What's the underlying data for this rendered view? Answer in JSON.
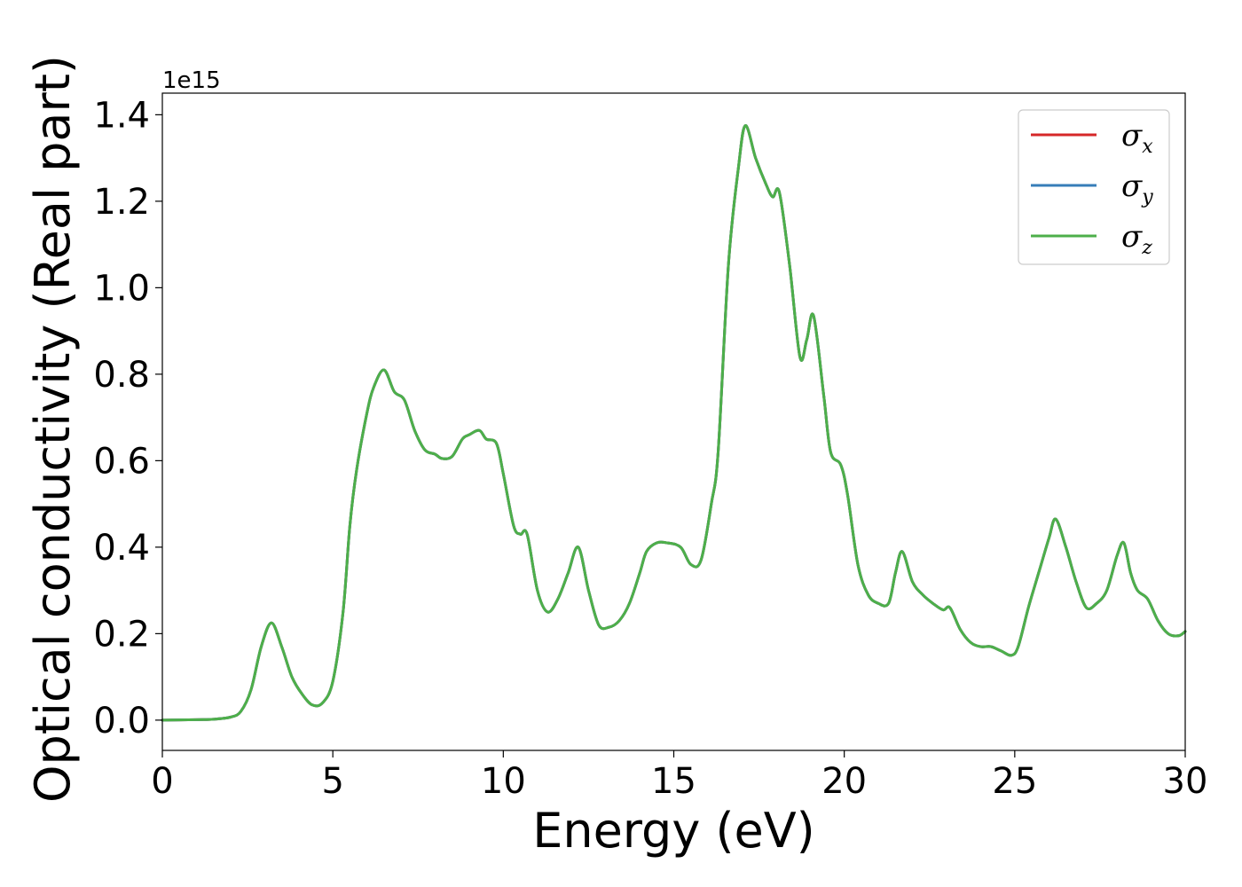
{
  "chart_data": {
    "type": "line",
    "title": "",
    "xlabel": "Energy (eV)",
    "ylabel": "Optical conductivity (Real part)",
    "y_offset_label": "1e15",
    "xlim": [
      0,
      30
    ],
    "ylim": [
      -0.07,
      1.45
    ],
    "x_ticks": [
      0,
      5,
      10,
      15,
      20,
      25,
      30
    ],
    "x_tick_labels": [
      "0",
      "5",
      "10",
      "15",
      "20",
      "25",
      "30"
    ],
    "y_ticks": [
      0.0,
      0.2,
      0.4,
      0.6,
      0.8,
      1.0,
      1.2,
      1.4
    ],
    "y_tick_labels": [
      "0.0",
      "0.2",
      "0.4",
      "0.6",
      "0.8",
      "1.0",
      "1.2",
      "1.4"
    ],
    "grid": false,
    "legend_position": "top-right",
    "x": [
      0,
      1,
      1.5,
      2,
      2.3,
      2.6,
      2.9,
      3.2,
      3.5,
      3.8,
      4.1,
      4.4,
      4.7,
      5.0,
      5.3,
      5.5,
      5.7,
      6.0,
      6.2,
      6.5,
      6.8,
      7.1,
      7.4,
      7.7,
      8.0,
      8.2,
      8.5,
      8.8,
      9.0,
      9.3,
      9.5,
      9.8,
      10.0,
      10.3,
      10.5,
      10.7,
      11.0,
      11.3,
      11.6,
      11.9,
      12.2,
      12.5,
      12.8,
      13.1,
      13.4,
      13.7,
      14.0,
      14.2,
      14.5,
      14.8,
      15.2,
      15.5,
      15.8,
      16.1,
      16.3,
      16.6,
      16.9,
      17.1,
      17.4,
      17.7,
      17.9,
      18.1,
      18.4,
      18.7,
      18.9,
      19.1,
      19.4,
      19.6,
      19.9,
      20.1,
      20.4,
      20.7,
      21.0,
      21.3,
      21.5,
      21.7,
      22.0,
      22.3,
      22.6,
      22.9,
      23.1,
      23.4,
      23.7,
      24.0,
      24.3,
      24.6,
      24.9,
      25.1,
      25.4,
      25.7,
      26.0,
      26.2,
      26.5,
      26.8,
      27.1,
      27.4,
      27.7,
      28.0,
      28.2,
      28.4,
      28.6,
      28.9,
      29.2,
      29.5,
      29.8,
      30.0
    ],
    "series": [
      {
        "name": "σx",
        "color": "#d62728",
        "y": [
          0,
          0.001,
          0.002,
          0.007,
          0.02,
          0.07,
          0.17,
          0.225,
          0.17,
          0.1,
          0.06,
          0.035,
          0.04,
          0.09,
          0.25,
          0.45,
          0.58,
          0.71,
          0.77,
          0.81,
          0.76,
          0.74,
          0.67,
          0.625,
          0.615,
          0.605,
          0.61,
          0.65,
          0.66,
          0.67,
          0.65,
          0.64,
          0.57,
          0.45,
          0.43,
          0.43,
          0.3,
          0.25,
          0.28,
          0.34,
          0.4,
          0.3,
          0.22,
          0.215,
          0.23,
          0.27,
          0.34,
          0.39,
          0.41,
          0.41,
          0.4,
          0.36,
          0.37,
          0.5,
          0.62,
          1.05,
          1.28,
          1.375,
          1.3,
          1.24,
          1.21,
          1.22,
          1.05,
          0.84,
          0.88,
          0.935,
          0.75,
          0.62,
          0.59,
          0.52,
          0.36,
          0.29,
          0.27,
          0.27,
          0.34,
          0.39,
          0.32,
          0.29,
          0.27,
          0.255,
          0.26,
          0.21,
          0.18,
          0.17,
          0.17,
          0.16,
          0.15,
          0.17,
          0.26,
          0.34,
          0.42,
          0.465,
          0.4,
          0.32,
          0.26,
          0.27,
          0.3,
          0.38,
          0.41,
          0.34,
          0.3,
          0.28,
          0.23,
          0.2,
          0.195,
          0.205
        ]
      },
      {
        "name": "σy",
        "color": "#377eb8",
        "y": [
          0,
          0.001,
          0.002,
          0.007,
          0.02,
          0.07,
          0.17,
          0.225,
          0.17,
          0.1,
          0.06,
          0.035,
          0.04,
          0.09,
          0.25,
          0.45,
          0.58,
          0.71,
          0.77,
          0.81,
          0.76,
          0.74,
          0.67,
          0.625,
          0.615,
          0.605,
          0.61,
          0.65,
          0.66,
          0.67,
          0.65,
          0.64,
          0.57,
          0.45,
          0.43,
          0.43,
          0.3,
          0.25,
          0.28,
          0.34,
          0.4,
          0.3,
          0.22,
          0.215,
          0.23,
          0.27,
          0.34,
          0.39,
          0.41,
          0.41,
          0.4,
          0.36,
          0.37,
          0.5,
          0.62,
          1.05,
          1.28,
          1.375,
          1.3,
          1.24,
          1.21,
          1.22,
          1.05,
          0.84,
          0.88,
          0.935,
          0.75,
          0.62,
          0.59,
          0.52,
          0.36,
          0.29,
          0.27,
          0.27,
          0.34,
          0.39,
          0.32,
          0.29,
          0.27,
          0.255,
          0.26,
          0.21,
          0.18,
          0.17,
          0.17,
          0.16,
          0.15,
          0.17,
          0.26,
          0.34,
          0.42,
          0.465,
          0.4,
          0.32,
          0.26,
          0.27,
          0.3,
          0.38,
          0.41,
          0.34,
          0.3,
          0.28,
          0.23,
          0.2,
          0.195,
          0.205
        ]
      },
      {
        "name": "σz",
        "color": "#4daf4a",
        "y": [
          0,
          0.001,
          0.002,
          0.007,
          0.02,
          0.07,
          0.17,
          0.225,
          0.17,
          0.1,
          0.06,
          0.035,
          0.04,
          0.09,
          0.25,
          0.45,
          0.58,
          0.71,
          0.77,
          0.81,
          0.76,
          0.74,
          0.67,
          0.625,
          0.615,
          0.605,
          0.61,
          0.65,
          0.66,
          0.67,
          0.65,
          0.64,
          0.57,
          0.45,
          0.43,
          0.43,
          0.3,
          0.25,
          0.28,
          0.34,
          0.4,
          0.3,
          0.22,
          0.215,
          0.23,
          0.27,
          0.34,
          0.39,
          0.41,
          0.41,
          0.4,
          0.36,
          0.37,
          0.5,
          0.62,
          1.05,
          1.28,
          1.375,
          1.3,
          1.24,
          1.21,
          1.22,
          1.05,
          0.84,
          0.88,
          0.935,
          0.75,
          0.62,
          0.59,
          0.52,
          0.36,
          0.29,
          0.27,
          0.27,
          0.34,
          0.39,
          0.32,
          0.29,
          0.27,
          0.255,
          0.26,
          0.21,
          0.18,
          0.17,
          0.17,
          0.16,
          0.15,
          0.17,
          0.26,
          0.34,
          0.42,
          0.465,
          0.4,
          0.32,
          0.26,
          0.27,
          0.3,
          0.38,
          0.41,
          0.34,
          0.3,
          0.28,
          0.23,
          0.2,
          0.195,
          0.205
        ]
      }
    ],
    "legend": [
      {
        "symbol": "σ",
        "subscript": "x",
        "color": "#d62728"
      },
      {
        "symbol": "σ",
        "subscript": "y",
        "color": "#377eb8"
      },
      {
        "symbol": "σ",
        "subscript": "z",
        "color": "#4daf4a"
      }
    ]
  }
}
